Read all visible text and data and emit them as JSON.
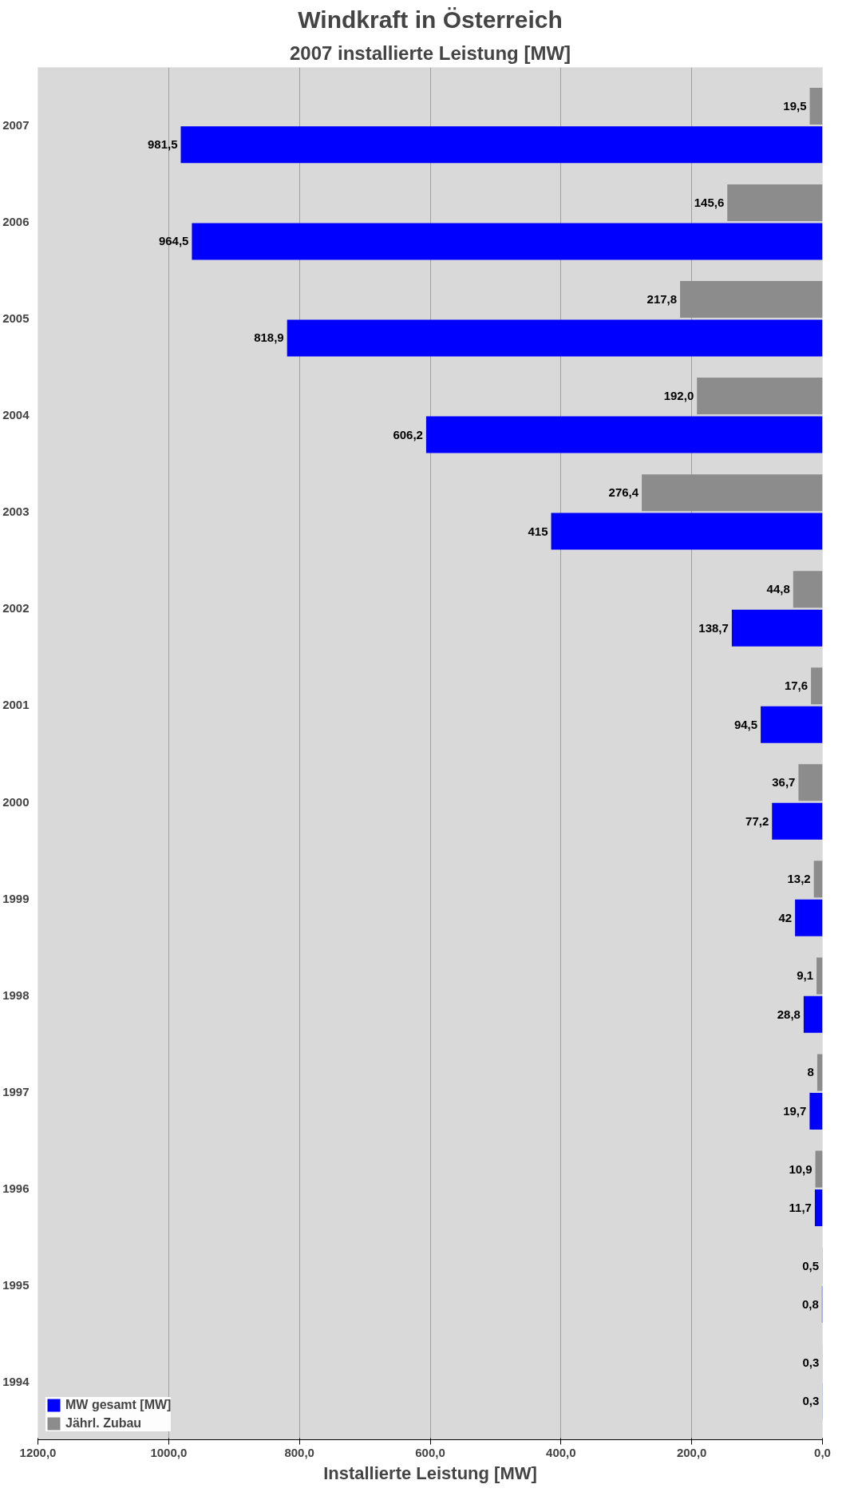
{
  "chart_data": {
    "type": "bar",
    "orientation": "horizontal",
    "title": "Windkraft in Österreich",
    "subtitle": "2007 installierte Leistung [MW]",
    "xlabel": "Installierte Leistung [MW]",
    "categories": [
      "2007",
      "2006",
      "2005",
      "2004",
      "2003",
      "2002",
      "2001",
      "2000",
      "1999",
      "1998",
      "1997",
      "1996",
      "1995",
      "1994"
    ],
    "series": [
      {
        "name": "Jährl. Zubau",
        "color": "#8c8c8c",
        "values": [
          19.5,
          145.6,
          217.8,
          192.0,
          276.4,
          44.8,
          17.6,
          36.7,
          13.2,
          9.1,
          8,
          10.9,
          0.5,
          0.3
        ],
        "value_labels": [
          "19,5",
          "145,6",
          "217,8",
          "192,0",
          "276,4",
          "44,8",
          "17,6",
          "36,7",
          "13,2",
          "9,1",
          "8",
          "10,9",
          "0,5",
          "0,3"
        ]
      },
      {
        "name": "MW gesamt [MW]",
        "color": "#0000ff",
        "values": [
          981.5,
          964.5,
          818.9,
          606.2,
          415,
          138.7,
          94.5,
          77.2,
          42,
          28.8,
          19.7,
          11.7,
          0.8,
          0.3
        ],
        "value_labels": [
          "981,5",
          "964,5",
          "818,9",
          "606,2",
          "415",
          "138,7",
          "94,5",
          "77,2",
          "42",
          "28,8",
          "19,7",
          "11,7",
          "0,8",
          "0,3"
        ]
      }
    ],
    "xlim": [
      1200,
      0
    ],
    "xticks": [
      {
        "value": 0,
        "label": "0,0"
      },
      {
        "value": 200,
        "label": "200,0"
      },
      {
        "value": 400,
        "label": "400,0"
      },
      {
        "value": 600,
        "label": "600,0"
      },
      {
        "value": 800,
        "label": "800,0"
      },
      {
        "value": 1000,
        "label": "1000,0"
      },
      {
        "value": 1200,
        "label": "1200,0"
      }
    ],
    "grid": "x",
    "legend": "bottom left"
  }
}
